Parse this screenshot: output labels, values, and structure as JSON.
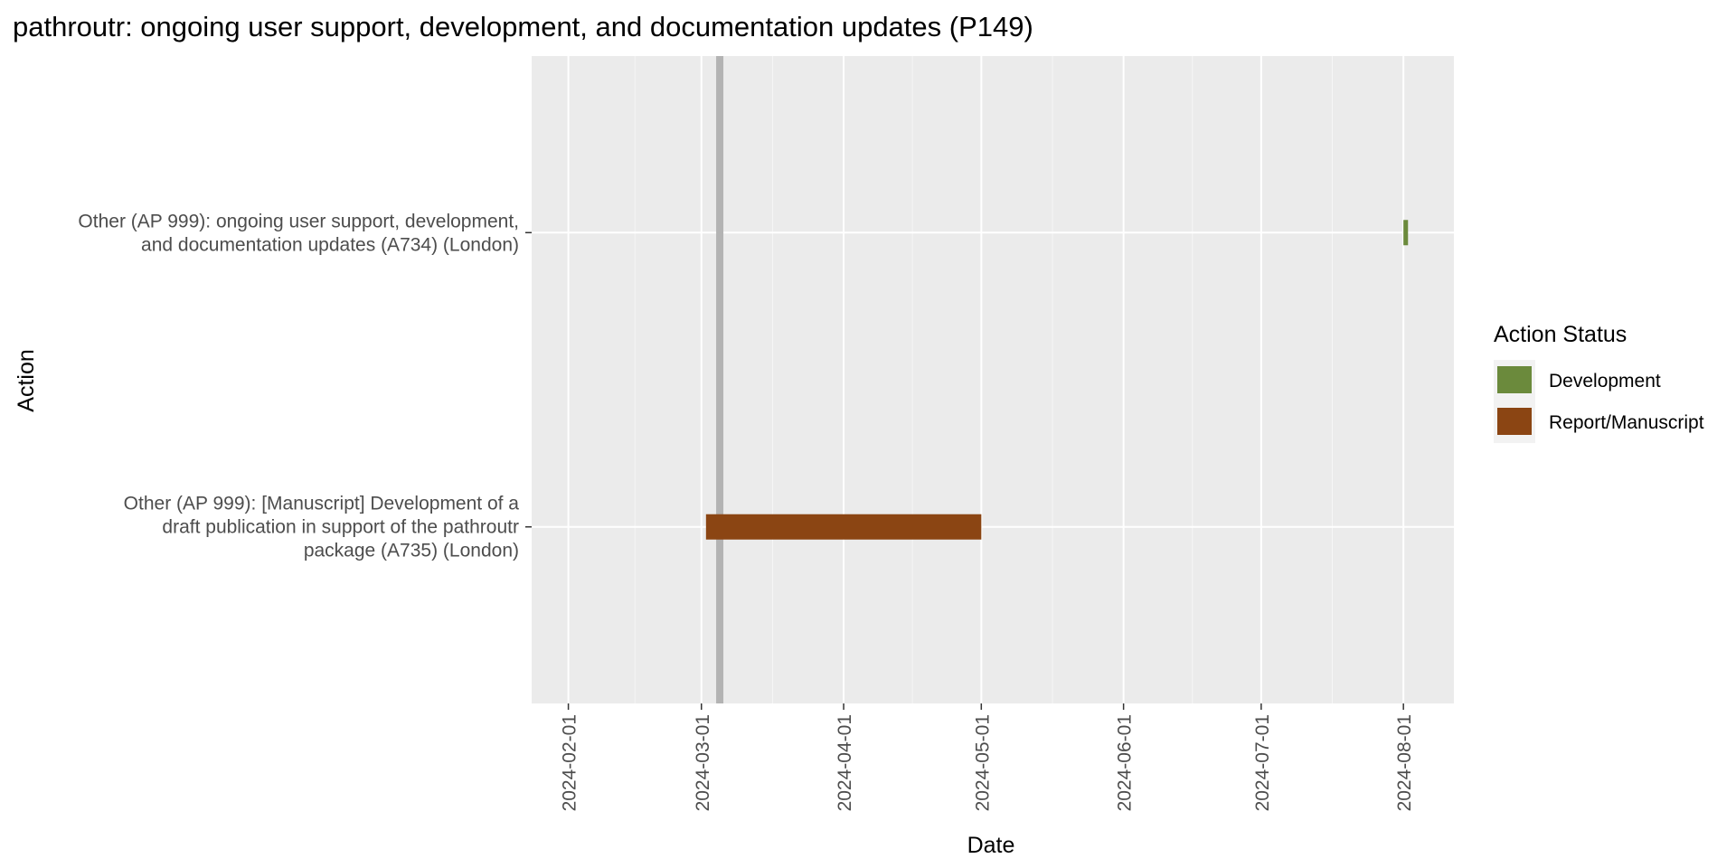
{
  "chart_data": {
    "type": "gantt",
    "title": "pathroutr: ongoing user support, development, and documentation updates (P149)",
    "xlabel": "Date",
    "ylabel": "Action",
    "xlim": [
      "2024-01-24",
      "2024-08-12"
    ],
    "x_ticks": [
      "2024-02-01",
      "2024-03-01",
      "2024-04-01",
      "2024-05-01",
      "2024-06-01",
      "2024-07-01",
      "2024-08-01"
    ],
    "grid": true,
    "background_color": "#ebebeb",
    "gridline_color": "#ffffff",
    "reference_line": {
      "date": "2024-03-05",
      "color": "#b3b3b3"
    },
    "categories": [
      "Other (AP 999): [Manuscript] Development of a draft publication in support of the pathroutr package (A735) (London)",
      "Other (AP 999): ongoing user support, development, and documentation updates (A734) (London)"
    ],
    "category_lines": [
      [
        "Other (AP 999): [Manuscript] Development of a",
        "draft publication in support of the pathroutr",
        "package (A735) (London)"
      ],
      [
        "Other (AP 999): ongoing user support, development,",
        "and documentation updates (A734) (London)"
      ]
    ],
    "tasks": [
      {
        "category_index": 0,
        "start": "2024-03-02",
        "end": "2024-05-01",
        "status": "Report/Manuscript"
      },
      {
        "category_index": 1,
        "start": "2024-08-01",
        "end": "2024-08-02",
        "status": "Development"
      }
    ],
    "legend": {
      "title": "Action Status",
      "placement": "right",
      "items": [
        {
          "label": "Development",
          "color": "#6b8a3c"
        },
        {
          "label": "Report/Manuscript",
          "color": "#8b4513"
        }
      ]
    }
  }
}
